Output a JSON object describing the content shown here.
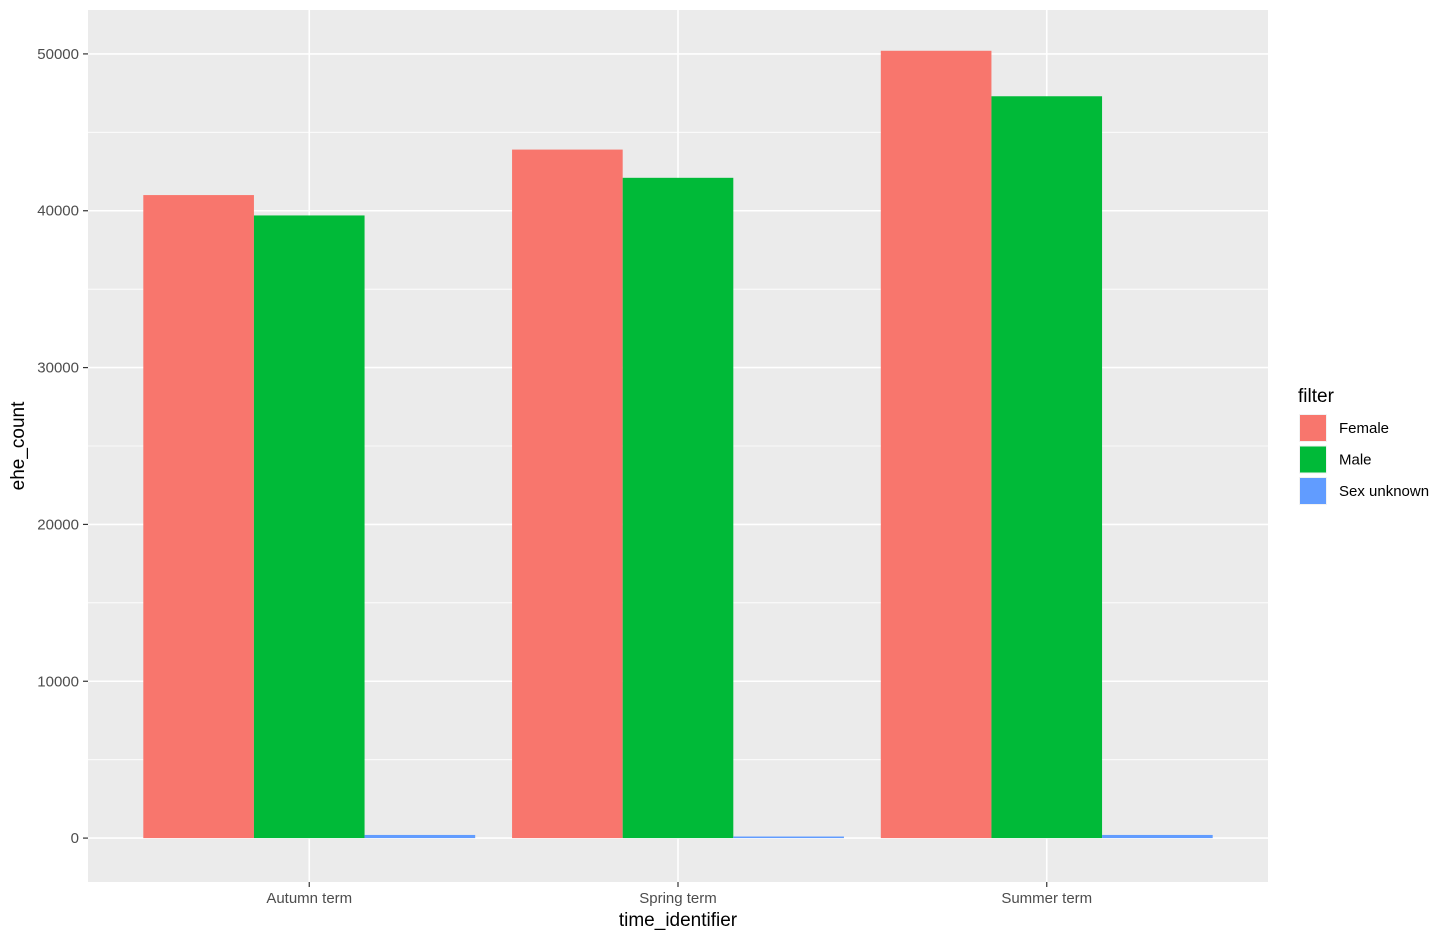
{
  "chart_data": {
    "type": "bar",
    "categories": [
      "Autumn term",
      "Spring term",
      "Summer term"
    ],
    "series": [
      {
        "name": "Female",
        "values": [
          41000,
          43900,
          50200
        ],
        "color": "#F8766D"
      },
      {
        "name": "Male",
        "values": [
          39700,
          42100,
          47300
        ],
        "color": "#00BA38"
      },
      {
        "name": "Sex unknown",
        "values": [
          200,
          100,
          200
        ],
        "color": "#619CFF"
      }
    ],
    "title": "",
    "xlabel": "time_identifier",
    "ylabel": "ehe_count",
    "ylim": [
      -2800,
      52800
    ],
    "y_ticks": [
      0,
      10000,
      20000,
      30000,
      40000,
      50000
    ],
    "y_tick_labels": [
      "0",
      "10000",
      "20000",
      "30000",
      "40000",
      "50000"
    ],
    "legend_title": "filter",
    "legend_position": "right",
    "grid": true,
    "panel_background": "#EBEBEB",
    "grid_color": "#FFFFFF"
  }
}
